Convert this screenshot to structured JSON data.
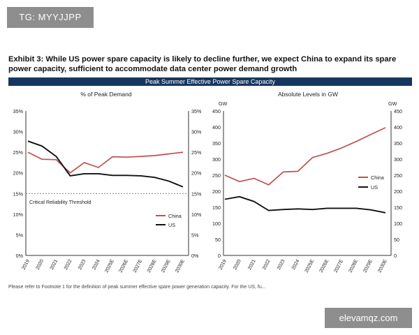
{
  "overlay": {
    "tag": "TG: MYYJJPP",
    "watermark": "elevamqz.com"
  },
  "exhibit": {
    "title": "Exhibit 3: While US power spare capacity is likely to decline further, we expect China to expand its spare power capacity, sufficient to accommodate data center power demand growth",
    "band_title": "Peak Summer Effective Power Spare Capacity",
    "footnote": "Please refer to Footnote 1 for the definition of peak summer effective spare power generation capacity. For the US, fu..."
  },
  "colors": {
    "china": "#c0504d",
    "us": "#111111",
    "band": "#17365e"
  },
  "chart_data": [
    {
      "type": "line",
      "title": "% of Peak Demand",
      "x": [
        "2019",
        "2020",
        "2021",
        "2022",
        "2023",
        "2024",
        "2025E",
        "2026E",
        "2027E",
        "2028E",
        "2029E",
        "2030E"
      ],
      "series": [
        {
          "name": "China",
          "values": [
            25.0,
            23.3,
            23.2,
            20.0,
            22.5,
            21.3,
            23.9,
            23.8,
            24.0,
            24.2,
            24.6,
            25.0
          ]
        },
        {
          "name": "US",
          "values": [
            27.7,
            26.5,
            24.0,
            19.3,
            19.8,
            19.8,
            19.4,
            19.4,
            19.3,
            18.9,
            18.0,
            16.6
          ]
        }
      ],
      "yticks_left": [
        "35%",
        "30%",
        "25%",
        "20%",
        "15%",
        "10%",
        "5%",
        "0%"
      ],
      "yticks_right": [
        "35%",
        "30%",
        "25%",
        "20%",
        "15%",
        "10%",
        "5%",
        "0%"
      ],
      "ylim": [
        0,
        35
      ],
      "threshold": {
        "value": 15,
        "label": "Critical Reliability Threshold"
      },
      "legend_placement": "bottom-right",
      "grid": false
    },
    {
      "type": "line",
      "title": "Absolute Levels in GW",
      "unit_left": "GW",
      "unit_right": "GW",
      "x": [
        "2019",
        "2020",
        "2021",
        "2022",
        "2023",
        "2024",
        "2025E",
        "2026E",
        "2027E",
        "2028E",
        "2029E",
        "2030E"
      ],
      "series": [
        {
          "name": "China",
          "values": [
            250,
            230,
            240,
            220,
            260,
            262,
            305,
            318,
            335,
            355,
            377,
            398
          ]
        },
        {
          "name": "US",
          "values": [
            175,
            183,
            168,
            140,
            143,
            145,
            143,
            147,
            147,
            147,
            142,
            133
          ]
        }
      ],
      "yticks_left": [
        "450",
        "400",
        "350",
        "300",
        "250",
        "200",
        "150",
        "100",
        "50",
        "0"
      ],
      "yticks_right": [
        "450",
        "400",
        "350",
        "300",
        "250",
        "200",
        "150",
        "100",
        "50",
        "0"
      ],
      "ylim": [
        0,
        450
      ],
      "legend_placement": "middle-right",
      "grid": false
    }
  ]
}
